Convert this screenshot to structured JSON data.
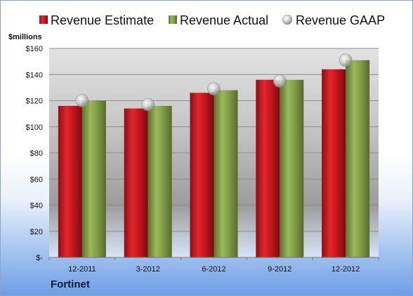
{
  "company": "Fortinet",
  "chart_data": {
    "type": "bar",
    "ylabel": "$millions",
    "categories": [
      "12-2011",
      "3-2012",
      "6-2012",
      "9-2012",
      "12-2012"
    ],
    "series": [
      {
        "name": "Revenue Estimate",
        "type": "bar",
        "color": "#c8161d",
        "values": [
          116,
          114,
          126,
          136,
          144
        ]
      },
      {
        "name": "Revenue Actual",
        "type": "bar",
        "color": "#7f9a45",
        "values": [
          120,
          116,
          128,
          136,
          151
        ]
      },
      {
        "name": "Revenue GAAP",
        "type": "marker",
        "color": "#c0c0c0",
        "values": [
          120,
          117,
          129,
          135,
          151
        ]
      }
    ],
    "ylim": [
      0,
      160
    ],
    "yticks": [
      {
        "value": 0,
        "label": "$-"
      },
      {
        "value": 20,
        "label": "$20"
      },
      {
        "value": 40,
        "label": "$40"
      },
      {
        "value": 60,
        "label": "$60"
      },
      {
        "value": 80,
        "label": "$80"
      },
      {
        "value": 100,
        "label": "$100"
      },
      {
        "value": 120,
        "label": "$120"
      },
      {
        "value": 140,
        "label": "$140"
      },
      {
        "value": 160,
        "label": "$160"
      }
    ],
    "grid": true,
    "legend": "top"
  }
}
